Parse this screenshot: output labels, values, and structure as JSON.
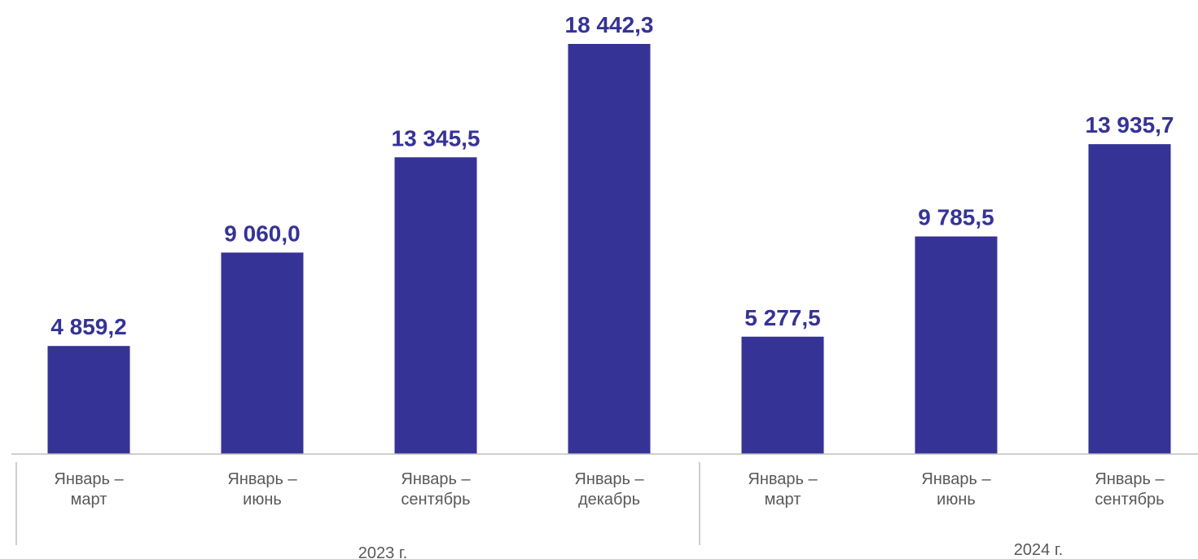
{
  "chart_data": {
    "type": "bar",
    "title": "",
    "xlabel": "",
    "ylabel": "",
    "ylim": [
      0,
      18442.3
    ],
    "grid": false,
    "legend": "none",
    "colors": {
      "bar": "#363396",
      "value_label": "#363396",
      "axis": "#bfbfbf",
      "tick_text": "#595959"
    },
    "groups": [
      {
        "label": "2023 г.",
        "categories": [
          [
            "Январь –",
            "март"
          ],
          [
            "Январь –",
            "июнь"
          ],
          [
            "Январь –",
            "сентябрь"
          ],
          [
            "Январь –",
            "декабрь"
          ]
        ],
        "values": [
          4859.2,
          9060.0,
          13345.5,
          18442.3
        ],
        "value_labels": [
          "4 859,2",
          "9 060,0",
          "13 345,5",
          "18 442,3"
        ]
      },
      {
        "label": "2024 г.",
        "categories": [
          [
            "Январь –",
            "март"
          ],
          [
            "Январь –",
            "июнь"
          ],
          [
            "Январь –",
            "сентябрь"
          ]
        ],
        "values": [
          5277.5,
          9785.5,
          13935.7
        ],
        "value_labels": [
          "5 277,5",
          "9 785,5",
          "13 935,7"
        ]
      }
    ]
  }
}
